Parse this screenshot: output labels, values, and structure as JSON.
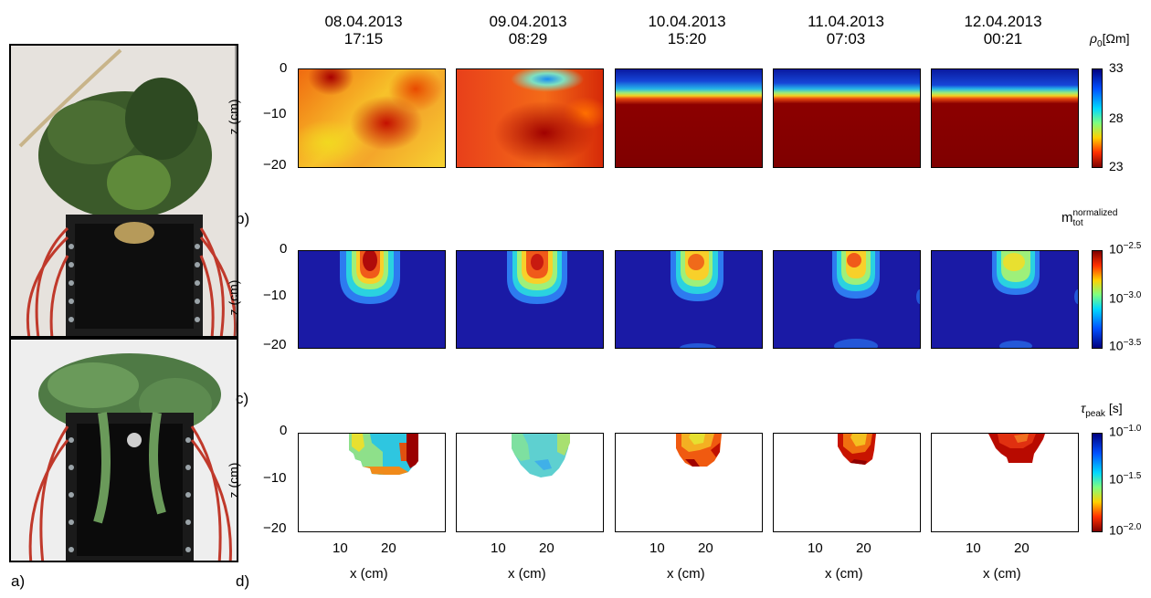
{
  "panel_labels": {
    "a": "a)",
    "b": "b)",
    "c": "c)",
    "d": "d)"
  },
  "timestamps": [
    {
      "date": "08.04.2013",
      "time": "17:15"
    },
    {
      "date": "09.04.2013",
      "time": "08:29"
    },
    {
      "date": "10.04.2013",
      "time": "15:20"
    },
    {
      "date": "11.04.2013",
      "time": "07:03"
    },
    {
      "date": "12.04.2013",
      "time": "00:21"
    }
  ],
  "axes": {
    "ylabel": "z (cm)",
    "xlabel": "x (cm)",
    "yticks": [
      "0",
      "−10",
      "−20"
    ],
    "xticks": [
      "10",
      "20"
    ]
  },
  "rows": [
    {
      "colorbar_label_main": "ρ",
      "colorbar_label_sub": "0",
      "colorbar_label_unit": "[Ωm]",
      "colorbar_ticks": [
        "33",
        "28",
        "23"
      ]
    },
    {
      "colorbar_label_main": "m",
      "colorbar_label_sub": "tot",
      "colorbar_label_sup": "normalized",
      "colorbar_ticks": [
        {
          "base": "10",
          "exp": "−2.5"
        },
        {
          "base": "10",
          "exp": "−3.0"
        },
        {
          "base": "10",
          "exp": "−3.5"
        }
      ]
    },
    {
      "colorbar_label_main": "τ",
      "colorbar_label_sub": "peak",
      "colorbar_label_unit": "[s]",
      "colorbar_ticks": [
        {
          "base": "10",
          "exp": "−1.0"
        },
        {
          "base": "10",
          "exp": "−1.5"
        },
        {
          "base": "10",
          "exp": "−2.0"
        }
      ]
    }
  ]
}
